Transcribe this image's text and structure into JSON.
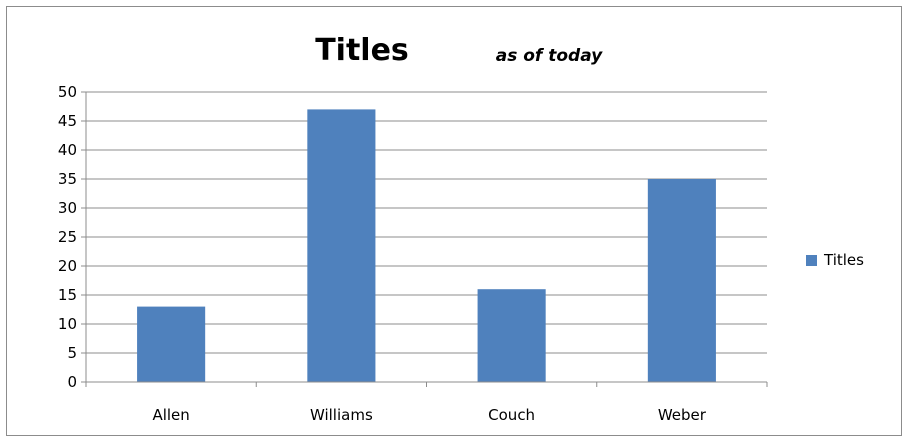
{
  "chart_data": {
    "type": "bar",
    "title": "Titles",
    "subtitle": "as of today",
    "categories": [
      "Allen",
      "Williams",
      "Couch",
      "Weber"
    ],
    "series": [
      {
        "name": "Titles",
        "values": [
          13,
          47,
          16,
          35
        ],
        "color": "#4f81bd"
      }
    ],
    "ylim": [
      0,
      50
    ],
    "yticks": [
      0,
      5,
      10,
      15,
      20,
      25,
      30,
      35,
      40,
      45,
      50
    ],
    "grid": true,
    "legend": "right"
  }
}
